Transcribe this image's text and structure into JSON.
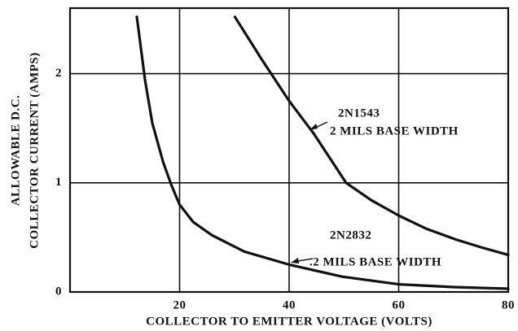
{
  "chart_data": {
    "type": "line",
    "xlabel": "COLLECTOR TO EMITTER VOLTAGE (VOLTS)",
    "ylabel": [
      "ALLOWABLE D.C.",
      "COLLECTOR CURRENT (AMPS)"
    ],
    "xlim": [
      0,
      80
    ],
    "ylim": [
      0,
      2.6
    ],
    "xticks": [
      20,
      40,
      60,
      80
    ],
    "yticks": [
      0,
      1,
      2
    ],
    "grid": true,
    "series": [
      {
        "name": "2N1543",
        "label": "2 MILS BASE WIDTH",
        "color": "#111111",
        "x": [
          30.1,
          35,
          40,
          44.5,
          50.4,
          55,
          60,
          65,
          70.5,
          75,
          80
        ],
        "values": [
          2.52,
          2.13,
          1.75,
          1.45,
          1.0,
          0.84,
          0.7,
          0.58,
          0.48,
          0.41,
          0.34
        ]
      },
      {
        "name": "2N2832",
        "label": ".2 MILS BASE WIDTH",
        "color": "#111111",
        "x": [
          12.2,
          13.7,
          15,
          17,
          18.5,
          20,
          22.5,
          25.9,
          31.8,
          40,
          49.7,
          60,
          70,
          80
        ],
        "values": [
          2.52,
          1.94,
          1.55,
          1.19,
          0.98,
          0.8,
          0.64,
          0.52,
          0.37,
          0.25,
          0.14,
          0.07,
          0.045,
          0.03
        ]
      }
    ]
  }
}
